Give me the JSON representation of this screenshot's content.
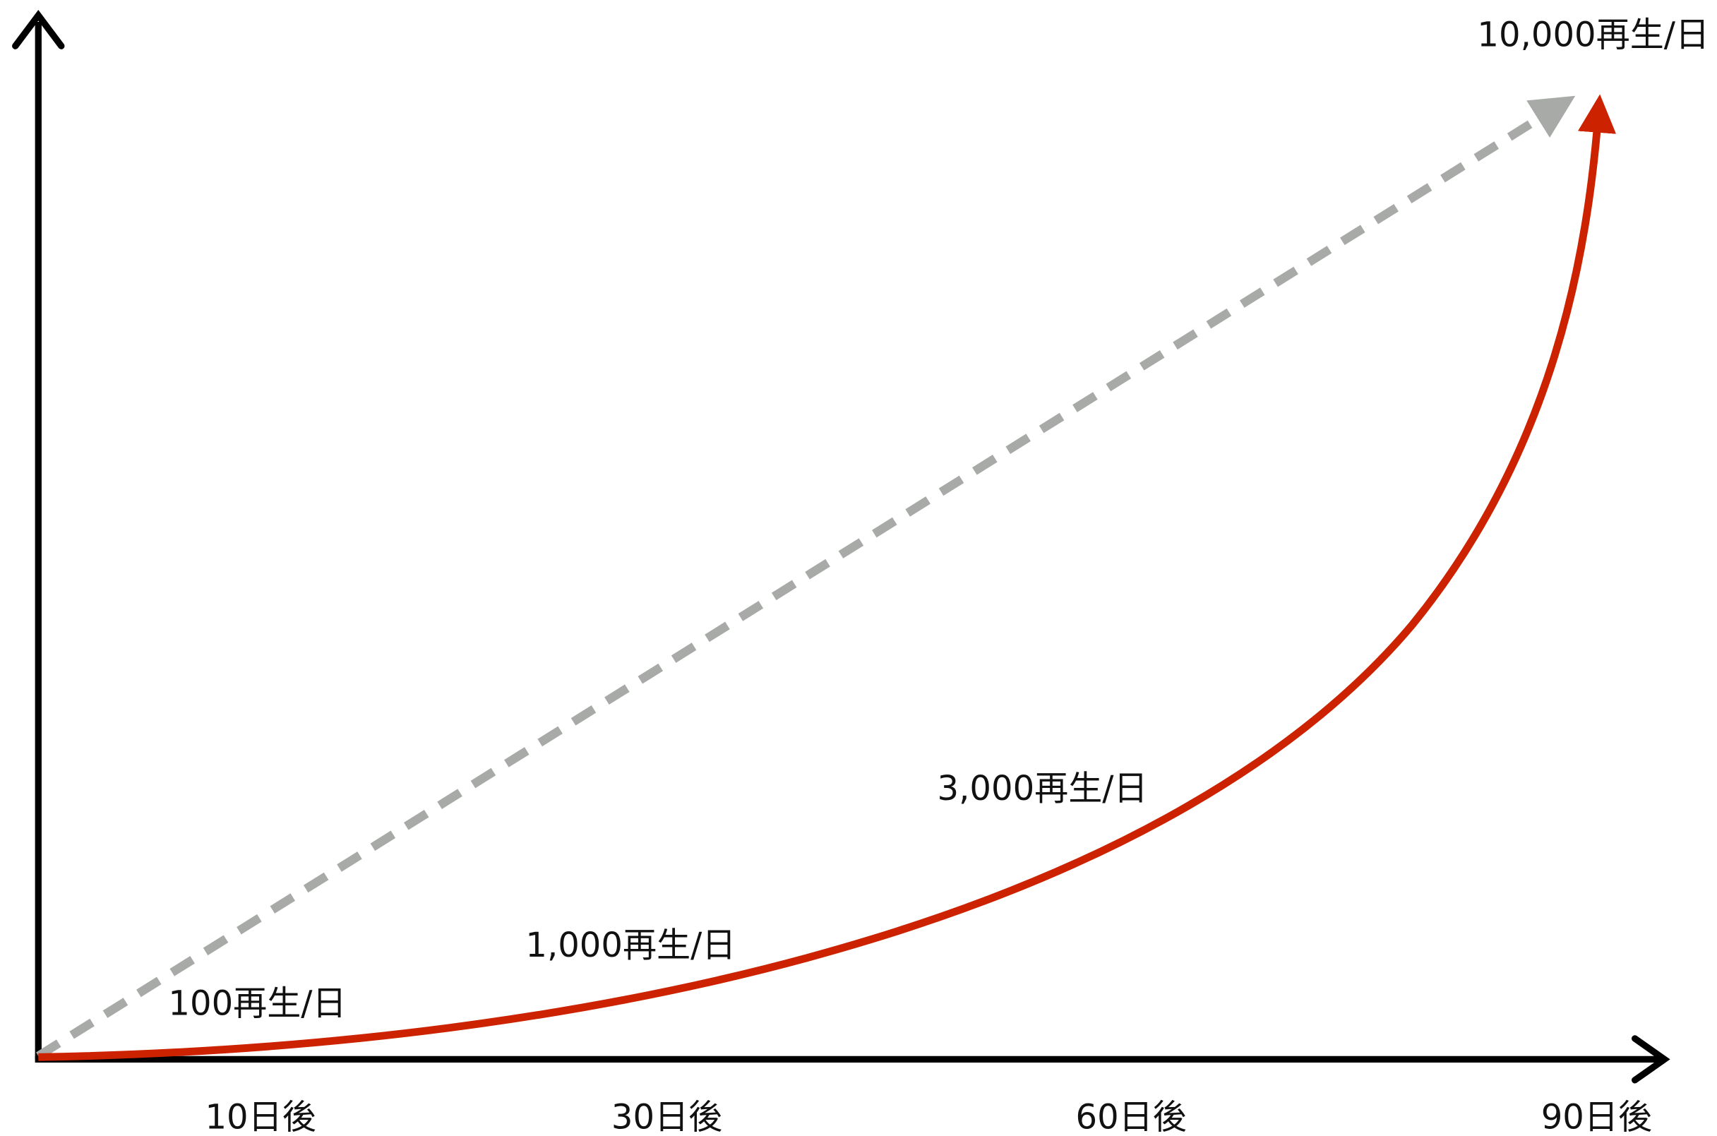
{
  "curve_labels": [
    "10,000再生/日",
    "3,000再生/日",
    "1,000再生/日",
    "100再生/日"
  ],
  "x_labels": [
    "10日後",
    "30日後",
    "60日後",
    "90日後"
  ]
}
